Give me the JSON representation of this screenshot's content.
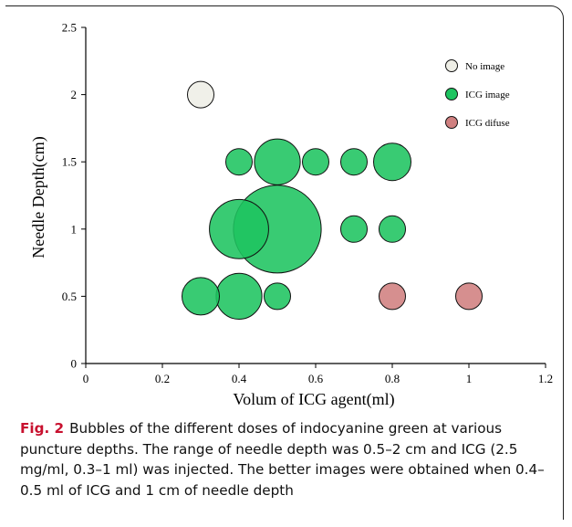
{
  "caption": {
    "label": "Fig. 2",
    "text": "Bubbles of the different doses of indocyanine green at various puncture depths. The range of needle depth was 0.5–2 cm and ICG (2.5 mg/ml, 0.3–1 ml) was injected. The better images were obtained when 0.4–0.5 ml of ICG and 1 cm of needle depth"
  },
  "chart_data": {
    "type": "scatter",
    "title": "",
    "xlabel": "Volum of  ICG agent(ml)",
    "ylabel": "Needle Depth(cm)",
    "xlim": [
      0,
      1.2
    ],
    "ylim": [
      0,
      2.5
    ],
    "x_ticks": [
      "0",
      "0.2",
      "0.4",
      "0.6",
      "0.8",
      "1",
      "1.2"
    ],
    "y_ticks": [
      "0",
      "0.5",
      "1",
      "1.5",
      "2",
      "2.5"
    ],
    "grid": false,
    "legend_position": "top-right",
    "legend": [
      {
        "name": "No image",
        "color": "#eeeee6"
      },
      {
        "name": "ICG image",
        "color": "#1ec460"
      },
      {
        "name": "ICG difuse",
        "color": "#d08080"
      }
    ],
    "series": [
      {
        "name": "No image",
        "color": "#eeeee6",
        "points": [
          {
            "x": 0.3,
            "y": 2.0,
            "size": 1
          }
        ]
      },
      {
        "name": "ICG image",
        "color": "#1ec460",
        "points": [
          {
            "x": 0.4,
            "y": 1.5,
            "size": 1
          },
          {
            "x": 0.5,
            "y": 1.5,
            "size": 3
          },
          {
            "x": 0.6,
            "y": 1.5,
            "size": 1
          },
          {
            "x": 0.7,
            "y": 1.5,
            "size": 1
          },
          {
            "x": 0.8,
            "y": 1.5,
            "size": 2
          },
          {
            "x": 0.4,
            "y": 1.0,
            "size": 5
          },
          {
            "x": 0.5,
            "y": 1.0,
            "size": 11
          },
          {
            "x": 0.7,
            "y": 1.0,
            "size": 1
          },
          {
            "x": 0.8,
            "y": 1.0,
            "size": 1
          },
          {
            "x": 0.3,
            "y": 0.5,
            "size": 2
          },
          {
            "x": 0.4,
            "y": 0.5,
            "size": 3
          },
          {
            "x": 0.5,
            "y": 0.5,
            "size": 1
          }
        ]
      },
      {
        "name": "ICG difuse",
        "color": "#d08080",
        "points": [
          {
            "x": 0.8,
            "y": 0.5,
            "size": 1
          },
          {
            "x": 1.0,
            "y": 0.5,
            "size": 1
          }
        ]
      }
    ]
  }
}
